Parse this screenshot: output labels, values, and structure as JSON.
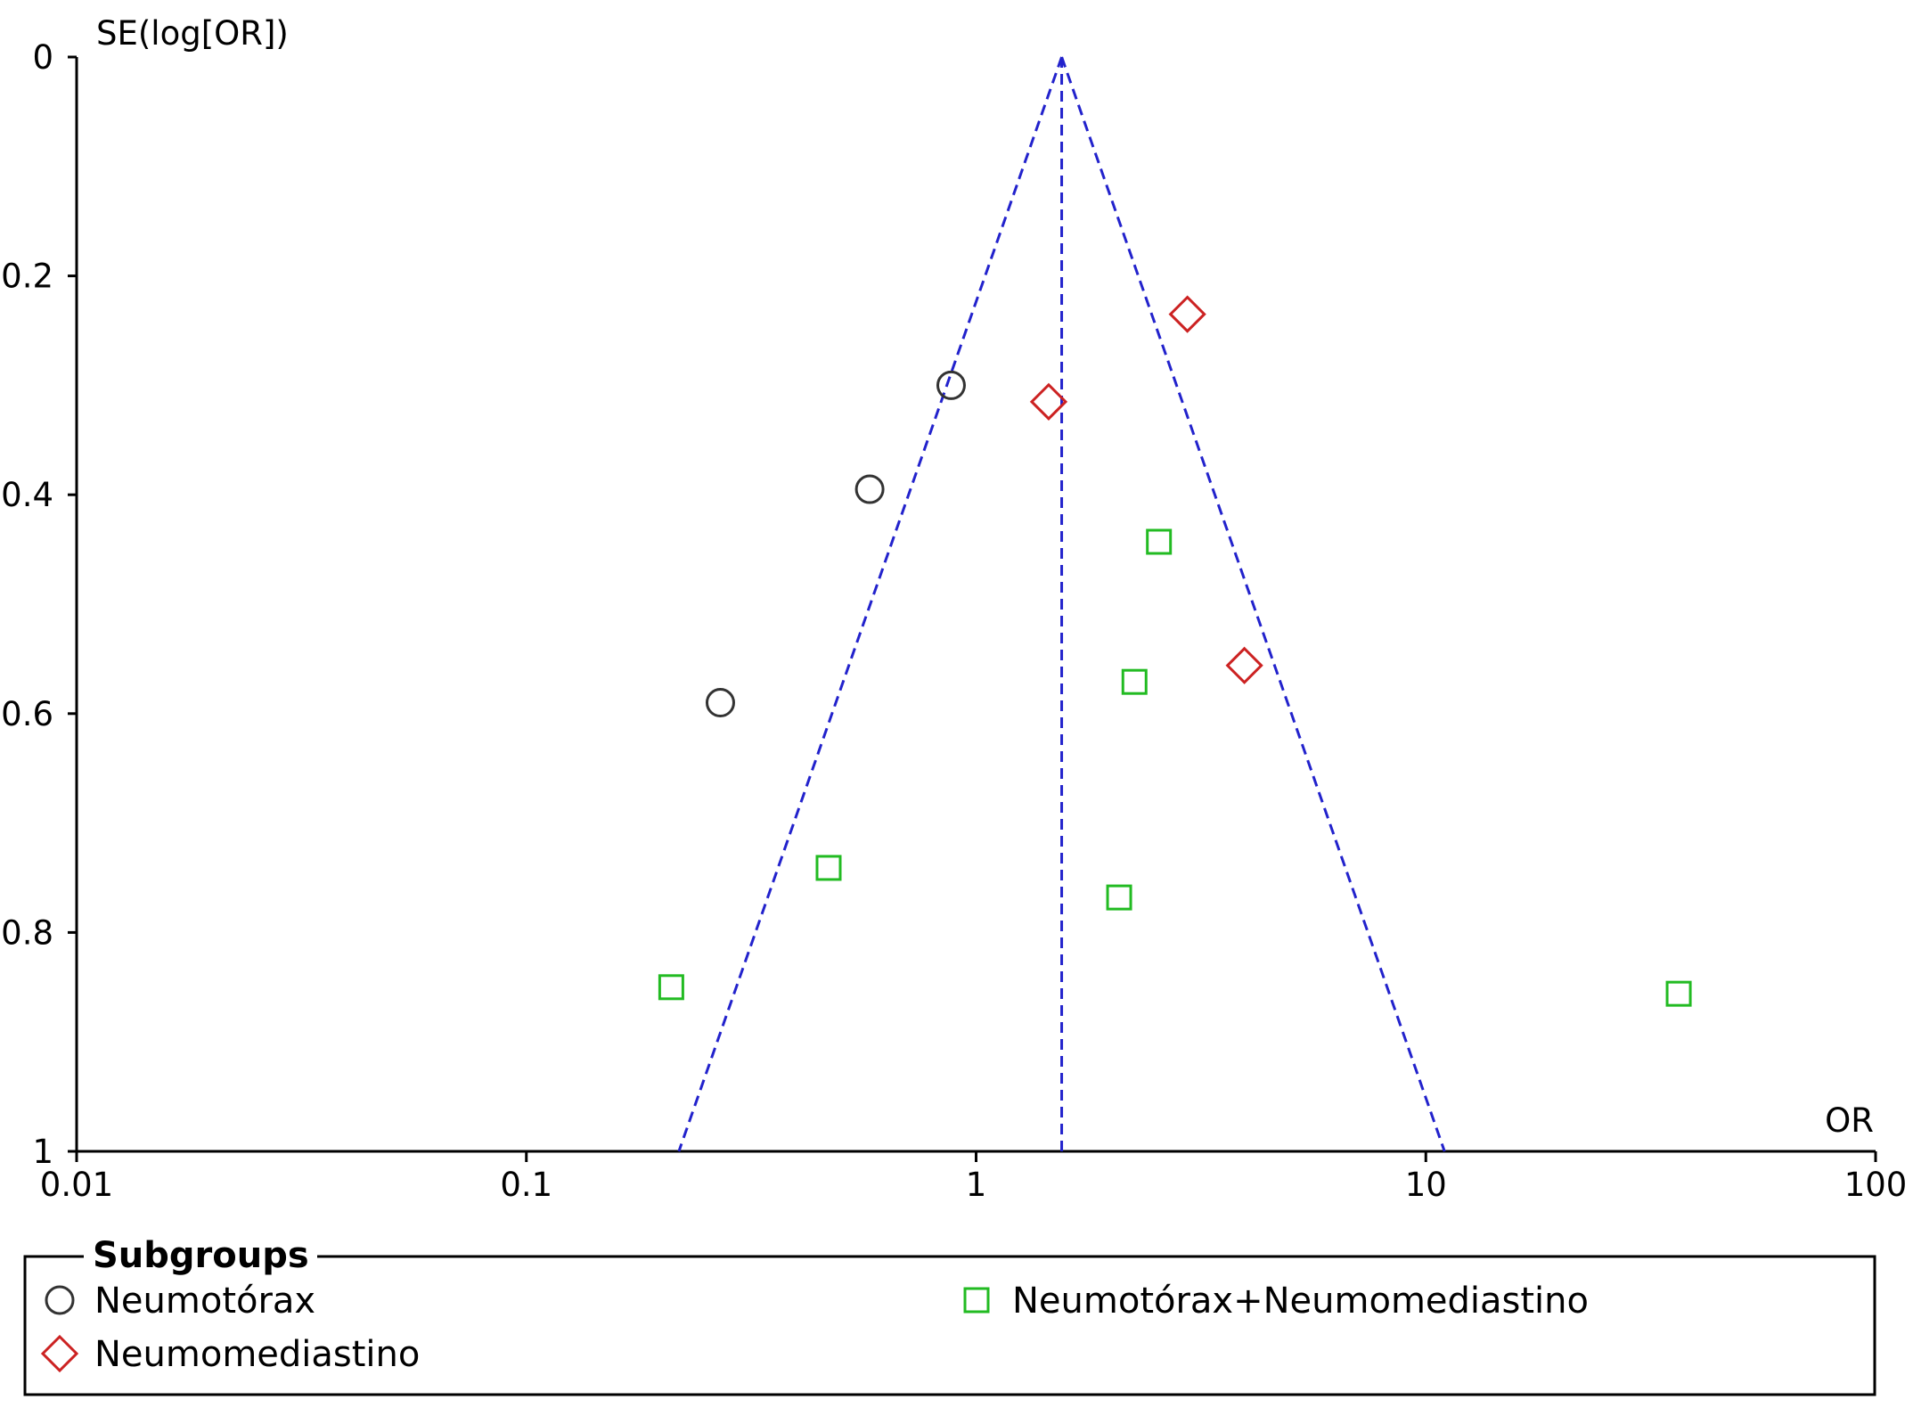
{
  "chart_data": {
    "type": "scatter",
    "plot_kind": "funnel",
    "x_scale": "log",
    "xlim": [
      0.01,
      100
    ],
    "ylim": [
      0,
      1
    ],
    "y_inverted": true,
    "xlabel": "OR",
    "ylabel": "SE(log[OR])",
    "x_ticks": [
      "0.01",
      "0.1",
      "1",
      "10",
      "100"
    ],
    "x_tick_values": [
      0.01,
      0.1,
      1,
      10,
      100
    ],
    "y_ticks": [
      "0",
      "0.2",
      "0.4",
      "0.6",
      "0.8",
      "1"
    ],
    "y_tick_values": [
      0,
      0.2,
      0.4,
      0.6,
      0.8,
      1
    ],
    "pooled_or": 1.55,
    "funnel_lines": "pseudo 95% CI",
    "colors": {
      "funnel": "#2222cc",
      "circle": "#333333",
      "diamond": "#cc2222",
      "square": "#22bb22"
    },
    "series": [
      {
        "name": "Neumotórax",
        "marker": "circle",
        "points": [
          {
            "x": 0.88,
            "y": 0.3
          },
          {
            "x": 0.58,
            "y": 0.395
          },
          {
            "x": 0.27,
            "y": 0.59
          }
        ]
      },
      {
        "name": "Neumomediastino",
        "marker": "diamond",
        "points": [
          {
            "x": 2.95,
            "y": 0.235
          },
          {
            "x": 1.45,
            "y": 0.315
          },
          {
            "x": 3.95,
            "y": 0.556
          }
        ]
      },
      {
        "name": "Neumotórax+Neumomediastino",
        "marker": "square",
        "points": [
          {
            "x": 2.55,
            "y": 0.443
          },
          {
            "x": 2.25,
            "y": 0.571
          },
          {
            "x": 0.47,
            "y": 0.741
          },
          {
            "x": 2.08,
            "y": 0.768
          },
          {
            "x": 0.21,
            "y": 0.85
          },
          {
            "x": 36.5,
            "y": 0.856
          }
        ]
      }
    ],
    "legend": {
      "title": "Subgroups",
      "placement": "bottom"
    }
  }
}
